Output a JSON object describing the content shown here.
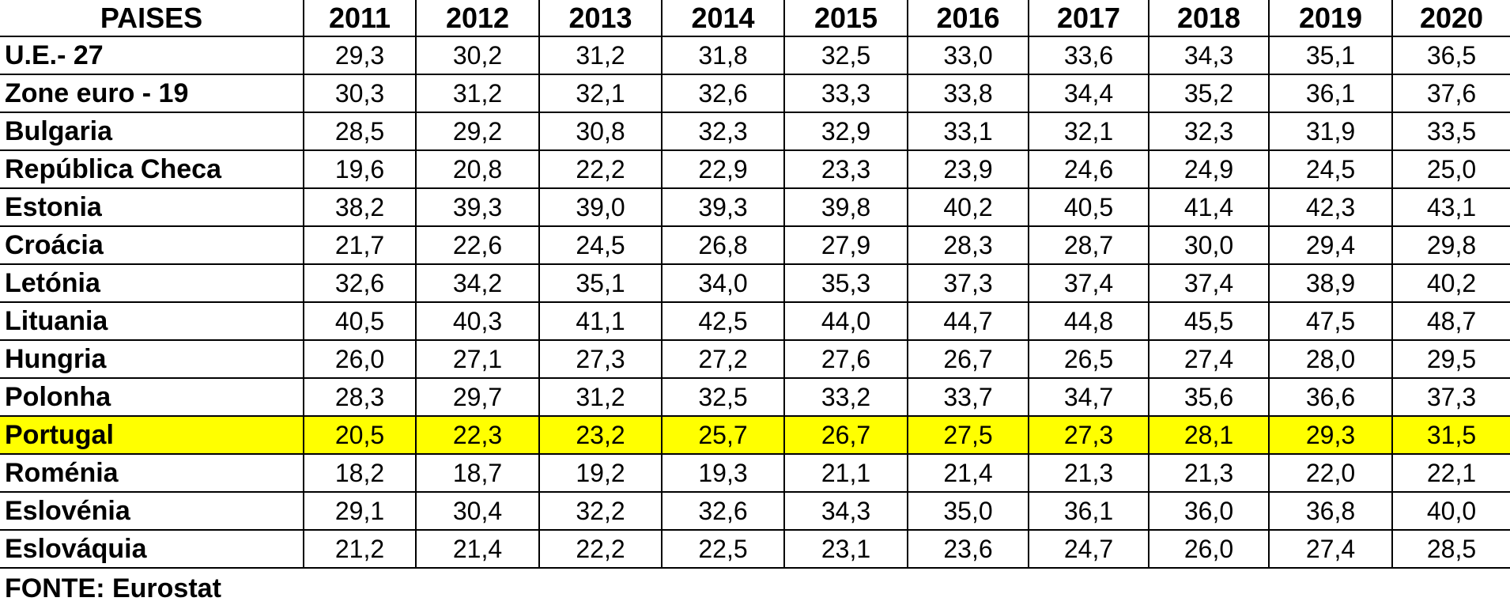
{
  "table": {
    "header": [
      "PAISES",
      "2011",
      "2012",
      "2013",
      "2014",
      "2015",
      "2016",
      "2017",
      "2018",
      "2019",
      "2020"
    ],
    "rows": [
      [
        "U.E.- 27",
        "29,3",
        "30,2",
        "31,2",
        "31,8",
        "32,5",
        "33,0",
        "33,6",
        "34,3",
        "35,1",
        "36,5"
      ],
      [
        "Zone euro - 19",
        "30,3",
        "31,2",
        "32,1",
        "32,6",
        "33,3",
        "33,8",
        "34,4",
        "35,2",
        "36,1",
        "37,6"
      ],
      [
        "Bulgaria",
        "28,5",
        "29,2",
        "30,8",
        "32,3",
        "32,9",
        "33,1",
        "32,1",
        "32,3",
        "31,9",
        "33,5"
      ],
      [
        "República Checa",
        "19,6",
        "20,8",
        "22,2",
        "22,9",
        "23,3",
        "23,9",
        "24,6",
        "24,9",
        "24,5",
        "25,0"
      ],
      [
        "Estonia",
        "38,2",
        "39,3",
        "39,0",
        "39,3",
        "39,8",
        "40,2",
        "40,5",
        "41,4",
        "42,3",
        "43,1"
      ],
      [
        "Croácia",
        "21,7",
        "22,6",
        "24,5",
        "26,8",
        "27,9",
        "28,3",
        "28,7",
        "30,0",
        "29,4",
        "29,8"
      ],
      [
        "Letónia",
        "32,6",
        "34,2",
        "35,1",
        "34,0",
        "35,3",
        "37,3",
        "37,4",
        "37,4",
        "38,9",
        "40,2"
      ],
      [
        "Lituania",
        "40,5",
        "40,3",
        "41,1",
        "42,5",
        "44,0",
        "44,7",
        "44,8",
        "45,5",
        "47,5",
        "48,7"
      ],
      [
        "Hungria",
        "26,0",
        "27,1",
        "27,3",
        "27,2",
        "27,6",
        "26,7",
        "26,5",
        "27,4",
        "28,0",
        "29,5"
      ],
      [
        "Polonha",
        "28,3",
        "29,7",
        "31,2",
        "32,5",
        "33,2",
        "33,7",
        "34,7",
        "35,6",
        "36,6",
        "37,3"
      ],
      [
        "Portugal",
        "20,5",
        "22,3",
        "23,2",
        "25,7",
        "26,7",
        "27,5",
        "27,3",
        "28,1",
        "29,3",
        "31,5"
      ],
      [
        "Roménia",
        "18,2",
        "18,7",
        "19,2",
        "19,3",
        "21,1",
        "21,4",
        "21,3",
        "21,3",
        "22,0",
        "22,1"
      ],
      [
        "Eslovénia",
        "29,1",
        "30,4",
        "32,2",
        "32,6",
        "34,3",
        "35,0",
        "36,1",
        "36,0",
        "36,8",
        "40,0"
      ],
      [
        "Eslováquia",
        "21,2",
        "21,4",
        "22,2",
        "22,5",
        "23,1",
        "23,6",
        "24,7",
        "26,0",
        "27,4",
        "28,5"
      ]
    ],
    "highlight_row": 10,
    "highlight_color": "#ffff00"
  },
  "source": "FONTE: Eurostat"
}
